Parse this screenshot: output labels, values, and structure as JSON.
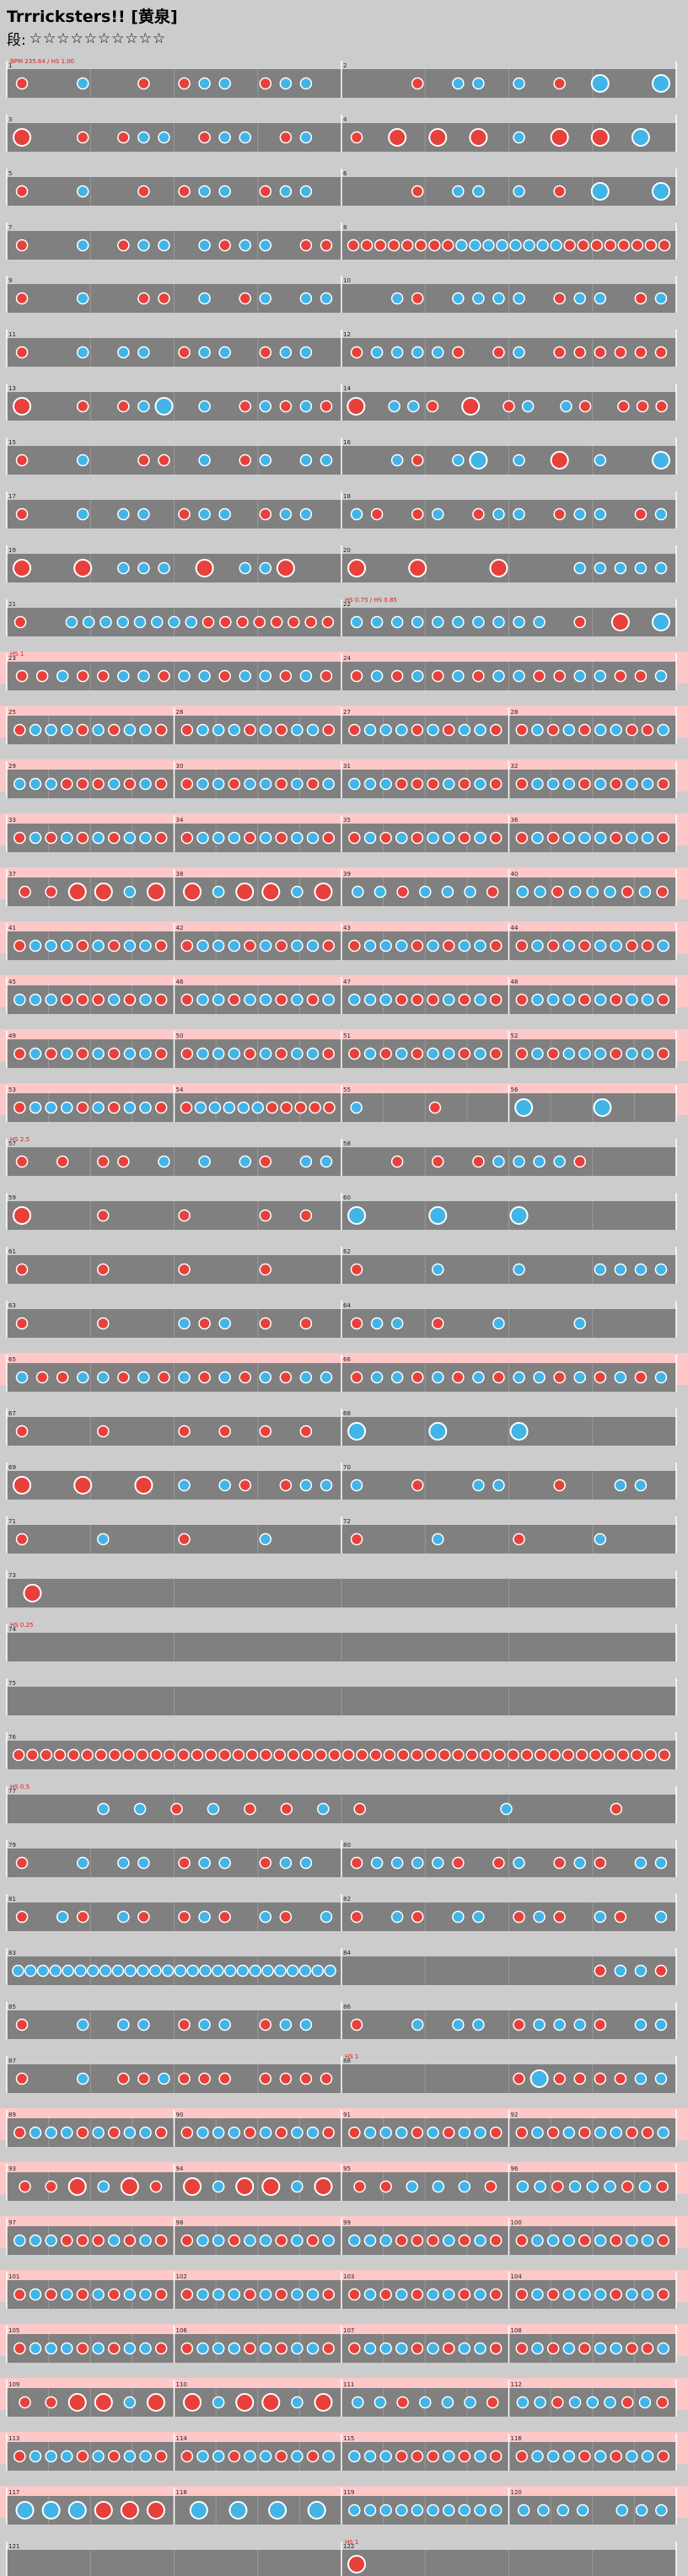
{
  "song": {
    "title": "Trrricksters!! [黄泉]",
    "difficulty_label": "段:",
    "stars": "☆☆☆☆☆☆☆☆☆☆",
    "star_count": 10
  },
  "colors": {
    "background": "#cccccc",
    "lane": "#808080",
    "lane_gogo": "#ffc8c8",
    "don": "#e8403a",
    "ka": "#41b5e8",
    "note_border": "#ffffff",
    "roll": "#f5b800",
    "annotation": "#e01818",
    "annotation_blue": "#2040e0",
    "barline": "#ffffff"
  },
  "chart_data": {
    "type": "taiko-score",
    "measures_per_row": 2,
    "measure_count": 122,
    "pattern_legend": "d = small don, D = big don, k = small ka, K = big ka, . = rest",
    "rows": [
      {
        "m": [
          1,
          2
        ],
        "p": [
          "d..k..d.dkk.dkk.",
          "...d.kk.k.d.K..K"
        ],
        "ann": [
          "BPM 235.64 / HS 1.00",
          ""
        ],
        "gogo": false
      },
      {
        "m": [
          3,
          4
        ],
        "p": [
          "D..d.dkk.dkk.dk.",
          "d.D.D.D.k.D.D.K."
        ],
        "ann": [
          "",
          ""
        ],
        "gogo": false
      },
      {
        "m": [
          5,
          6
        ],
        "p": [
          "d..k..d.dkk.dkk.",
          "...d.kk.k.d.K..K"
        ],
        "ann": [
          "",
          ""
        ],
        "gogo": false
      },
      {
        "m": [
          7,
          8
        ],
        "p": [
          "d..k.dkk.kdkk.dd",
          "ddddddddkkkkkkkkdddddddd"
        ],
        "ann": [
          "",
          ""
        ],
        "gogo": false
      },
      {
        "m": [
          9,
          10
        ],
        "p": [
          "d..k..dd.k.dk.kk",
          "..kd.kkkk.dkk.dk"
        ],
        "ann": [
          "",
          ""
        ],
        "gogo": false
      },
      {
        "m": [
          11,
          12
        ],
        "p": [
          "d..k.kk.dkk.dkk.",
          "dkkkkd.dk.dddddd"
        ],
        "ann": [
          "",
          ""
        ],
        "gogo": false
      },
      {
        "m": [
          13,
          14
        ],
        "p": [
          "D..d.dkK.k.dkdkd",
          "D.kkd.D.dk.kd.ddd"
        ],
        "ann": [
          "",
          ""
        ],
        "gogo": false
      },
      {
        "m": [
          15,
          16
        ],
        "p": [
          "d..k..dd.k.dk.kk",
          "..kd.kK.k.D.k..K"
        ],
        "ann": [
          "",
          ""
        ],
        "gogo": false
      },
      {
        "m": [
          17,
          18
        ],
        "p": [
          "d..k.kk.dkk.dkk.",
          "kd.dk.dkk.dkk.dk"
        ],
        "ann": [
          "",
          ""
        ],
        "gogo": false
      },
      {
        "m": [
          19,
          20
        ],
        "p": [
          "D..D.kkk.D.kkD..",
          "D..D...D...kkkkk"
        ],
        "ann": [
          "",
          ""
        ],
        "gogo": false
      },
      {
        "m": [
          21,
          22
        ],
        "p": [
          "d..kkkkkkkkdddddddd",
          "kkkkkkkkkk.d.D.K"
        ],
        "ann": [
          "",
          "HS 0.75 / HS 0.85"
        ],
        "gogo": false
      },
      {
        "m": [
          23,
          24
        ],
        "p": [
          "ddkddkkdkkdkkdkd",
          "dkdkdkdkkddkkddk"
        ],
        "ann": [
          "HS 1",
          ""
        ],
        "gogo": true
      },
      {
        "m": [
          25,
          26,
          27,
          28
        ],
        "p": [
          "dkkkdkdkkd",
          "dkkkdkdkkd",
          "dkkkdkdkkd",
          "dkdkdkkddk"
        ],
        "ann": [
          "",
          "",
          "",
          ""
        ],
        "gogo": true
      },
      {
        "m": [
          29,
          30,
          31,
          32
        ],
        "p": [
          "kkkdddkdkd",
          "dkkdkkdkdk",
          "kkkdddkdkd",
          "dkkkdkdkkd"
        ],
        "ann": [
          "",
          "",
          "",
          ""
        ],
        "gogo": true
      },
      {
        "m": [
          33,
          34,
          35,
          36
        ],
        "p": [
          "dkdkdkdkkd",
          "dkkkdkdkkd",
          "dkdkdkkdkd",
          "dkdkkkdkkd"
        ],
        "ann": [
          "",
          "",
          "",
          ""
        ],
        "gogo": true
      },
      {
        "m": [
          37,
          38,
          39,
          40
        ],
        "p": [
          "ddDDkD",
          "DkDDkD",
          "kkdkkkd",
          "kkdkkkdkd"
        ],
        "ann": [
          "",
          "",
          "",
          ""
        ],
        "gogo": true
      },
      {
        "m": [
          41,
          42,
          43,
          44
        ],
        "p": [
          "dkkkdkdkkd",
          "dkkkdkdkkd",
          "dkkkdkdkkd",
          "dkdkdkkddk"
        ],
        "ann": [
          "",
          "",
          "",
          ""
        ],
        "gogo": true
      },
      {
        "m": [
          45,
          46,
          47,
          48
        ],
        "p": [
          "kkkdddkdkd",
          "dkkdkkdkdk",
          "kkkdddkdkd",
          "dkkkdkdkkd"
        ],
        "ann": [
          "",
          "",
          "",
          ""
        ],
        "gogo": true
      },
      {
        "m": [
          49,
          50,
          51,
          52
        ],
        "p": [
          "dkdkdkdkkd",
          "dkkkdkdkkd",
          "dkdkdkkdkd",
          "dkdkkkdkkd"
        ],
        "ann": [
          "",
          "",
          "",
          ""
        ],
        "gogo": true
      },
      {
        "m": [
          53,
          54,
          55,
          56
        ],
        "p": [
          "dkkkdkdkkd",
          "dkkkkkddddd",
          "k...d...",
          "K...K..."
        ],
        "ann": [
          "",
          "",
          "",
          ""
        ],
        "gogo": true
      },
      {
        "m": [
          57,
          58
        ],
        "p": [
          "d.d.dd.k.k.kd.kk",
          "..d.d.dkkkkd...."
        ],
        "ann": [
          "HS 2.5",
          ""
        ],
        "gogo": false
      },
      {
        "m": [
          59,
          60
        ],
        "p": [
          "D...d...d...d.d.",
          "K...K...K......."
        ],
        "ann": [
          "",
          ""
        ],
        "gogo": false
      },
      {
        "m": [
          61,
          62
        ],
        "p": [
          "d...d...d...d...",
          "d...k...k...kkkk"
        ],
        "ann": [
          "",
          ""
        ],
        "gogo": false
      },
      {
        "m": [
          63,
          64
        ],
        "p": [
          "d...d...kdk.d.d.",
          "dkk.d..k...k...."
        ],
        "ann": [
          "",
          ""
        ],
        "gogo": false
      },
      {
        "m": [
          65,
          66
        ],
        "p": [
          "kddkkdkdkdkdkdkk",
          "dkkdkdkdkkdkdkdk"
        ],
        "ann": [
          "",
          ""
        ],
        "gogo": true
      },
      {
        "m": [
          67,
          68
        ],
        "p": [
          "d...d...d.d.d.d.",
          "K...K...K......."
        ],
        "ann": [
          "",
          ""
        ],
        "gogo": false
      },
      {
        "m": [
          69,
          70
        ],
        "p": [
          "D..D..D.k.kd.dkk",
          "k..d..kk..d..kk."
        ],
        "ann": [
          "",
          ""
        ],
        "gogo": false
      },
      {
        "m": [
          71,
          72
        ],
        "p": [
          "d...k...d...k...",
          "d...k...d...k..."
        ],
        "ann": [
          "",
          ""
        ],
        "gogo": false
      },
      {
        "m": [
          73
        ],
        "p": [
          "D..............."
        ],
        "ann": [
          ""
        ],
        "gogo": false
      },
      {
        "m": [
          74
        ],
        "p": [
          "................"
        ],
        "ann": [
          "HS 0.25"
        ],
        "gogo": false
      },
      {
        "m": [
          75
        ],
        "p": [
          "................"
        ],
        "ann": [
          ""
        ],
        "gogo": false
      },
      {
        "m": [
          76
        ],
        "p": [
          "dddddddddddddddddddddddddddddddddddddddddddddddd"
        ],
        "ann": [
          ""
        ],
        "gogo": false
      },
      {
        "m": [
          77
        ],
        "p": [
          "..kkdkddkd...k..d."
        ],
        "ann": [
          "HS 0.5"
        ],
        "gogo": false
      },
      {
        "m": [
          79,
          80
        ],
        "p": [
          "d..k.kk.dkk.dkk.",
          "dkkkkd.dk.dkd.kk"
        ],
        "ann": [
          "",
          ""
        ],
        "gogo": false
      },
      {
        "m": [
          81,
          82
        ],
        "p": [
          "d.kd.kd.dkd.kd.k",
          "d.kd.kk.dkd.kd.k"
        ],
        "ann": [
          "",
          ""
        ],
        "gogo": false
      },
      {
        "m": [
          83,
          84
        ],
        "p": [
          "kkkkkkkkkkkkkkkkkkkkkkkkkk",
          "............dkkd"
        ],
        "ann": [
          "",
          ""
        ],
        "gogo": false
      },
      {
        "m": [
          85,
          86
        ],
        "p": [
          "d..k.kk.dkk.dkk.",
          "d..k.kk.dkkkd.kk"
        ],
        "ann": [
          "",
          ""
        ],
        "gogo": false
      },
      {
        "m": [
          87,
          88
        ],
        "p": [
          "d..k.ddkddd.dddd",
          "........dKddddkk"
        ],
        "ann": [
          "",
          "HS 1"
        ],
        "gogo": false
      },
      {
        "m": [
          89,
          90,
          91,
          92
        ],
        "p": [
          "dkkkdkdkkd",
          "dkkkdkdkkd",
          "dkkkdkdkkd",
          "dkdkdkkddk"
        ],
        "ann": [
          "",
          "",
          "",
          ""
        ],
        "gogo": true
      },
      {
        "m": [
          93,
          94,
          95,
          96
        ],
        "p": [
          "ddDkDd",
          "DkDDkD",
          "ddkkkd",
          "kkdkkkdkd"
        ],
        "ann": [
          "",
          "",
          "",
          ""
        ],
        "gogo": true
      },
      {
        "m": [
          97,
          98,
          99,
          100
        ],
        "p": [
          "kkkdddkdkd",
          "dkkdkkdkdk",
          "kkkdddkdkd",
          "dkkkdkdkkd"
        ],
        "ann": [
          "",
          "",
          "",
          ""
        ],
        "gogo": true
      },
      {
        "m": [
          101,
          102,
          103,
          104
        ],
        "p": [
          "dkdkdkdkkd",
          "dkkkdkdkkd",
          "dkdkdkkdkd",
          "dkdkkkdkkd"
        ],
        "ann": [
          "",
          "",
          "",
          ""
        ],
        "gogo": true
      },
      {
        "m": [
          105,
          106,
          107,
          108
        ],
        "p": [
          "dkkkdkdkkd",
          "dkkkdkdkkd",
          "dkkkdkdkkd",
          "dkdkdkkddk"
        ],
        "ann": [
          "",
          "",
          "",
          ""
        ],
        "gogo": true
      },
      {
        "m": [
          109,
          110,
          111,
          112
        ],
        "p": [
          "ddDDkD",
          "DkDDkD",
          "kkdkkkd",
          "kkdkkkdkd"
        ],
        "ann": [
          "",
          "",
          "",
          ""
        ],
        "gogo": true
      },
      {
        "m": [
          113,
          114,
          115,
          116
        ],
        "p": [
          "dkkkdkdkkd",
          "dkkdkkdkdk",
          "kkkdddkdkd",
          "dkkkdkdkkd"
        ],
        "ann": [
          "",
          "",
          "",
          ""
        ],
        "gogo": true
      },
      {
        "m": [
          117,
          118,
          119,
          120
        ],
        "p": [
          "KKKDDD",
          "KKKK",
          "kkkkkkkkkk",
          "kkkk.kkk"
        ],
        "ann": [
          "",
          "",
          "",
          ""
        ],
        "gogo": true
      },
      {
        "m": [
          121,
          122
        ],
        "p": [
          "................",
          "D..............."
        ],
        "ann": [
          "",
          "HS 1"
        ],
        "gogo": false
      }
    ],
    "row_tops": [
      68,
      132,
      196,
      260,
      323,
      387,
      451,
      515,
      579,
      643,
      707,
      771,
      835,
      899,
      963,
      1027,
      1091,
      1155,
      1219,
      1283,
      1347,
      1411,
      1475,
      1539,
      1603,
      1667,
      1731,
      1795,
      1859,
      1923,
      1987,
      2051,
      2115,
      2179,
      2243,
      2307,
      2371,
      2435,
      2499,
      2563,
      2627,
      2691,
      2755,
      2819,
      2883,
      2947,
      3011
    ]
  }
}
